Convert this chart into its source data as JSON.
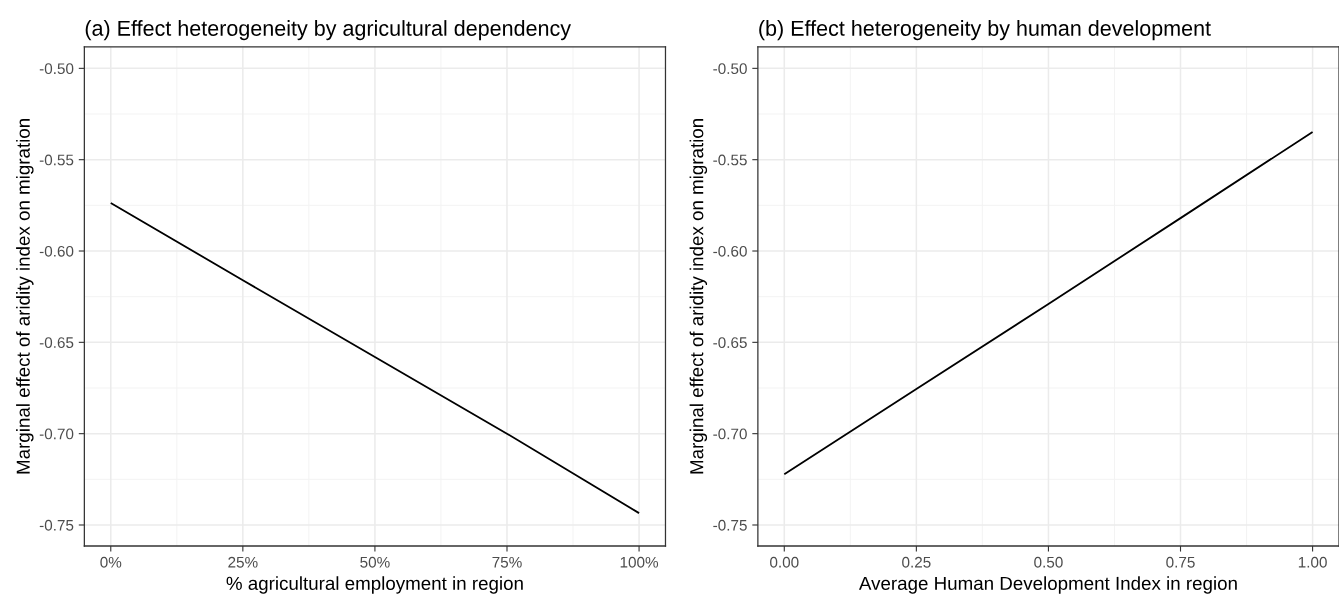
{
  "chart_data": [
    {
      "type": "line",
      "title": "(a) Effect heterogeneity by agricultural dependency",
      "xlabel": "% agricultural employment in region",
      "ylabel": "Marginal effect of aridity index on migration",
      "series": [
        {
          "color": "#000000",
          "x": [
            0,
            0.25,
            0.5,
            0.75,
            1
          ],
          "values": [
            -0.5737,
            -0.616,
            -0.658,
            -0.7,
            -0.7435
          ]
        }
      ],
      "xlim": [
        -0.05,
        1.05
      ],
      "xticks": [
        {
          "value": 0,
          "label": "0%"
        },
        {
          "value": 0.25,
          "label": "25%"
        },
        {
          "value": 0.5,
          "label": "50%"
        },
        {
          "value": 0.75,
          "label": "75%"
        },
        {
          "value": 1,
          "label": "100%"
        }
      ],
      "ylim": [
        -0.7615,
        -0.4882
      ],
      "yticks": [
        {
          "value": -0.75,
          "label": "-0.75"
        },
        {
          "value": -0.7,
          "label": "-0.70"
        },
        {
          "value": -0.65,
          "label": "-0.65"
        },
        {
          "value": -0.6,
          "label": "-0.60"
        },
        {
          "value": -0.55,
          "label": "-0.55"
        },
        {
          "value": -0.5,
          "label": "-0.50"
        }
      ],
      "grid": true,
      "legend": false
    },
    {
      "type": "line",
      "title": "(b) Effect heterogeneity by human development",
      "xlabel": "Average Human Development Index in region",
      "ylabel": "Marginal effect of aridity index on migration",
      "series": [
        {
          "color": "#000000",
          "x": [
            0,
            0.25,
            0.5,
            0.75,
            1
          ],
          "values": [
            -0.7222,
            -0.6756,
            -0.629,
            -0.582,
            -0.5348
          ]
        }
      ],
      "xlim": [
        -0.05,
        1.05
      ],
      "xticks": [
        {
          "value": 0,
          "label": "0.00"
        },
        {
          "value": 0.25,
          "label": "0.25"
        },
        {
          "value": 0.5,
          "label": "0.50"
        },
        {
          "value": 0.75,
          "label": "0.75"
        },
        {
          "value": 1,
          "label": "1.00"
        }
      ],
      "ylim": [
        -0.7615,
        -0.4882
      ],
      "yticks": [
        {
          "value": -0.75,
          "label": "-0.75"
        },
        {
          "value": -0.7,
          "label": "-0.70"
        },
        {
          "value": -0.65,
          "label": "-0.65"
        },
        {
          "value": -0.6,
          "label": "-0.60"
        },
        {
          "value": -0.55,
          "label": "-0.55"
        },
        {
          "value": -0.5,
          "label": "-0.50"
        }
      ],
      "grid": true,
      "legend": false
    }
  ]
}
